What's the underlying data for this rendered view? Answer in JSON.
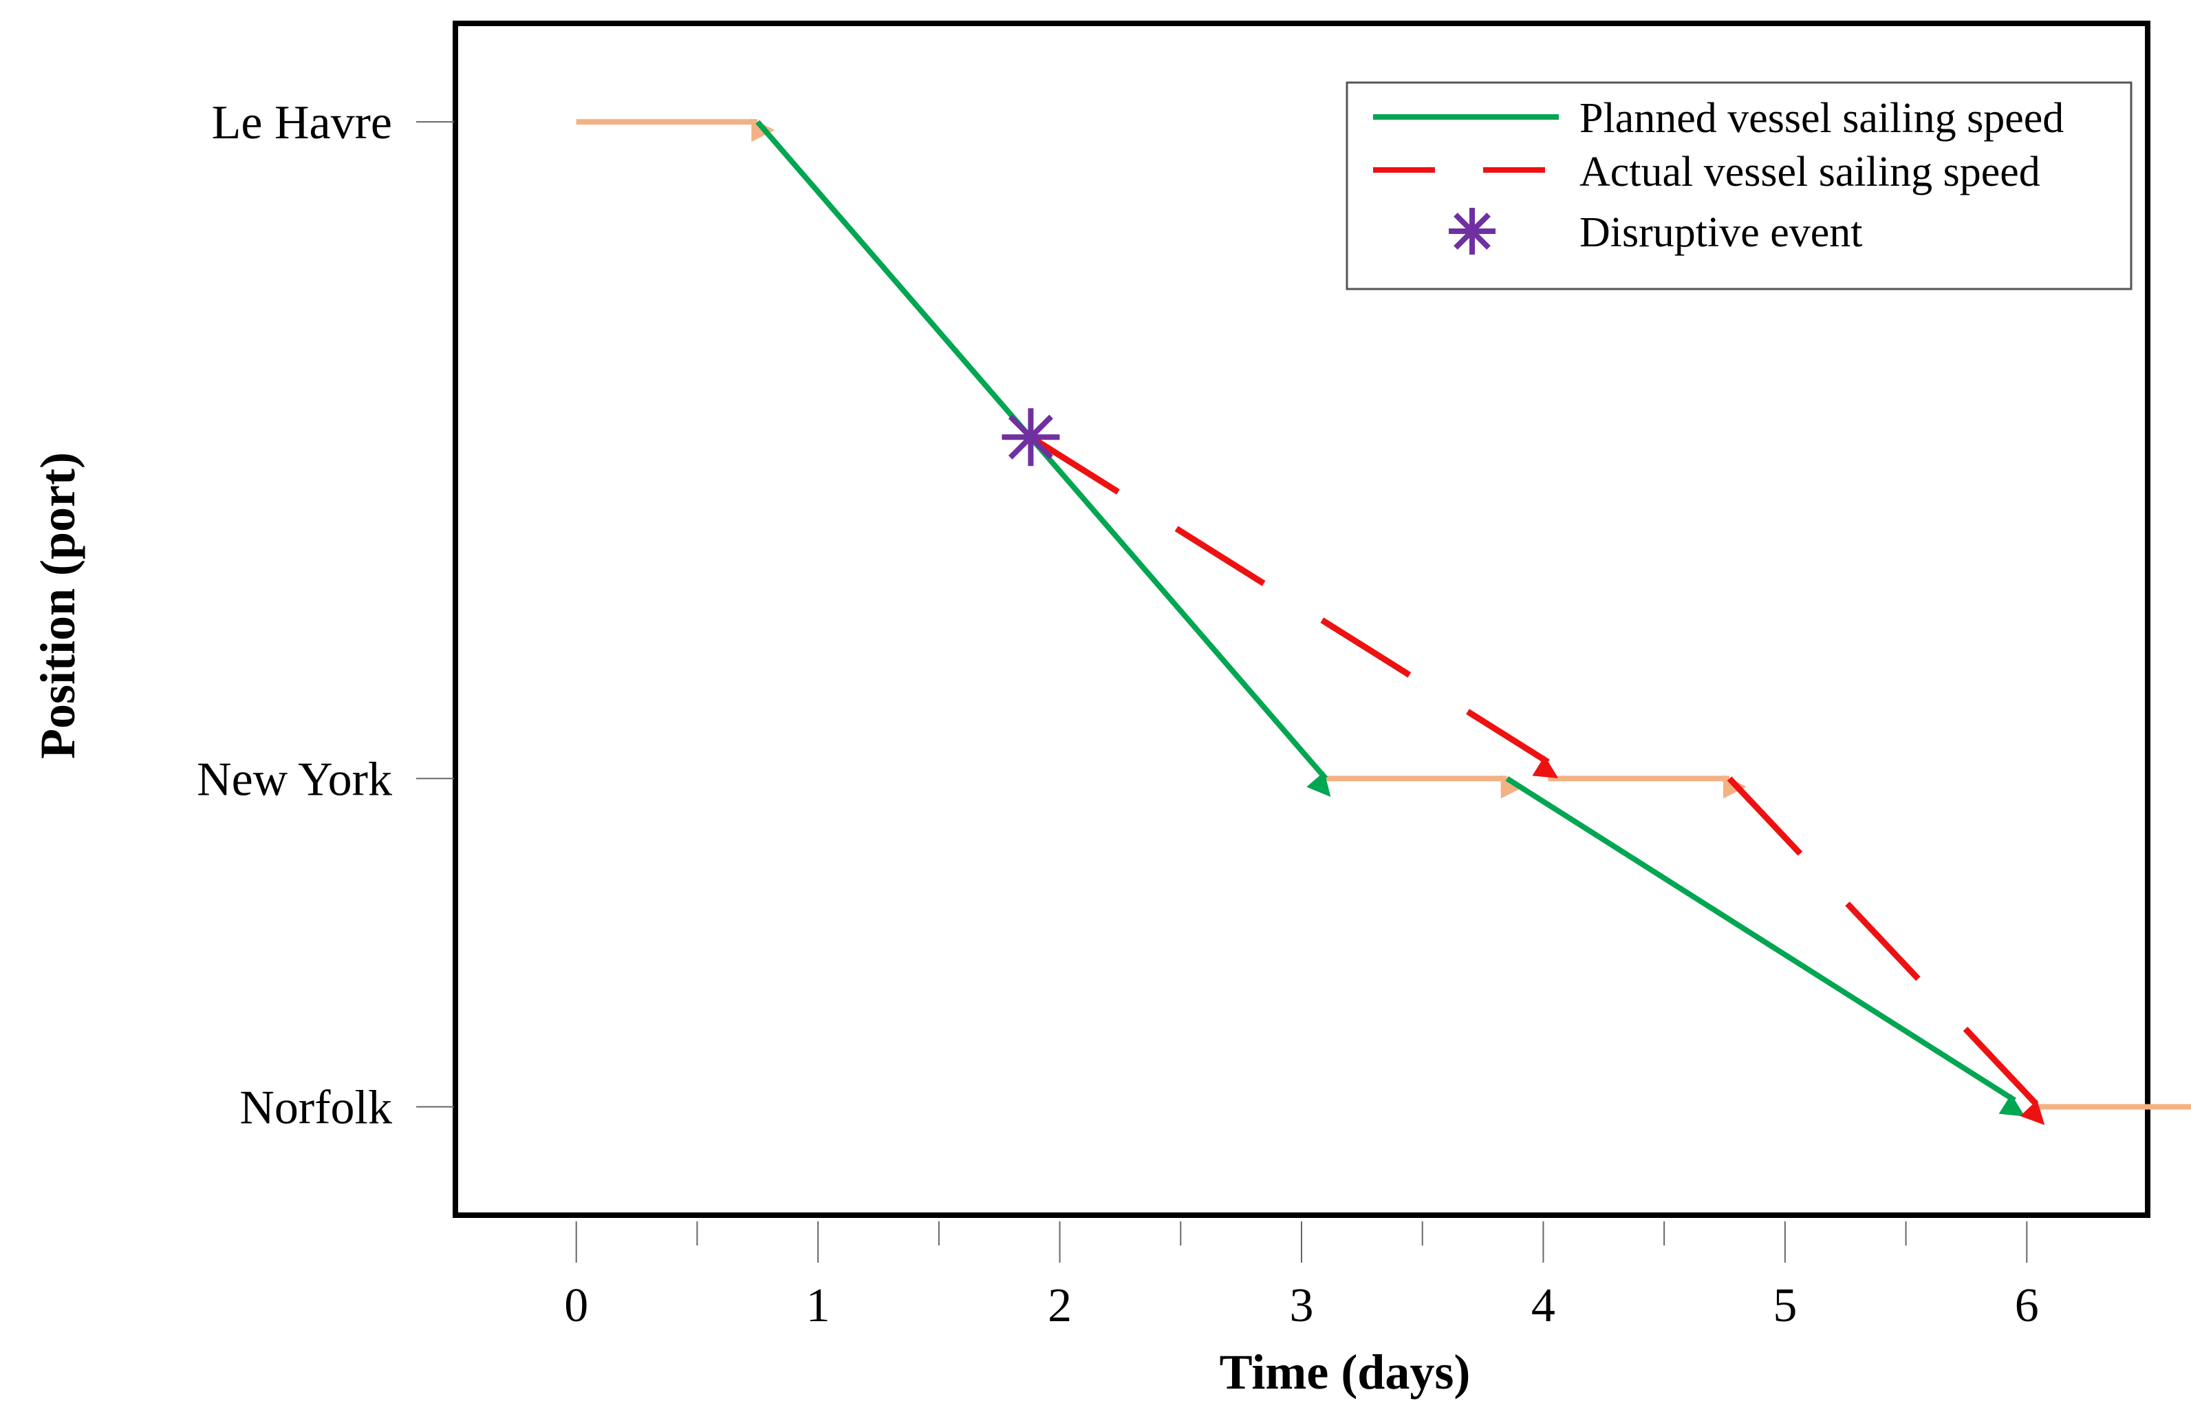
{
  "chart_data": {
    "type": "line",
    "xlabel": "Time (days)",
    "ylabel": "Position (port)",
    "x_ticks": [
      "0",
      "1",
      "2",
      "3",
      "4",
      "5",
      "6"
    ],
    "xlim": [
      -0.5,
      6.5
    ],
    "ports": [
      {
        "name": "Le Havre",
        "value": 3
      },
      {
        "name": "New York",
        "value": 1
      },
      {
        "name": "Norfolk",
        "value": 0
      }
    ],
    "ylim": [
      -0.33,
      3.3
    ],
    "legend": {
      "placement": "top-right",
      "entries": [
        {
          "key": "planned",
          "label": "Planned vessel sailing speed"
        },
        {
          "key": "actual",
          "label": "Actual vessel sailing speed"
        },
        {
          "key": "disruption",
          "label": "Disruptive event"
        }
      ]
    },
    "colors": {
      "planned": "#00a651",
      "actual": "#ee1111",
      "port_stay": "#f4b183",
      "disruption": "#7030a0"
    },
    "port_stays": [
      {
        "from": [
          0,
          3
        ],
        "to": [
          0.75,
          3
        ]
      },
      {
        "from": [
          3.1,
          1
        ],
        "to": [
          3.85,
          1
        ]
      },
      {
        "from": [
          4.02,
          1
        ],
        "to": [
          4.77,
          1
        ]
      },
      {
        "from": [
          6.05,
          0
        ],
        "to": [
          6.75,
          0
        ]
      }
    ],
    "planned_series": [
      {
        "from": [
          0.75,
          3
        ],
        "to": [
          3.1,
          1
        ]
      },
      {
        "from": [
          3.85,
          1
        ],
        "to": [
          5.95,
          0.02
        ]
      }
    ],
    "actual_series": [
      {
        "from": [
          1.88,
          2.04
        ],
        "to": [
          4.02,
          1.05
        ]
      },
      {
        "from": [
          4.77,
          1
        ],
        "to": [
          6.05,
          0
        ]
      }
    ],
    "disruptive_event": {
      "x": 1.88,
      "y": 2.04
    }
  }
}
